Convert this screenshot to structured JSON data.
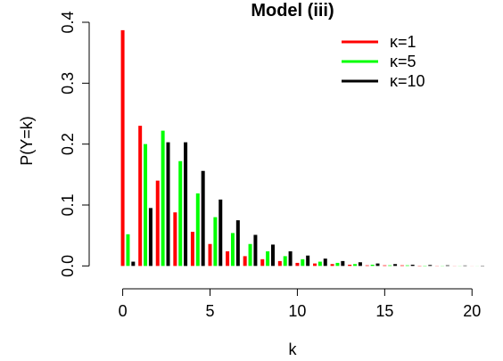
{
  "chart_data": {
    "type": "bar",
    "title": "Model (iii)",
    "xlabel": "k",
    "ylabel": "P(Y=k)",
    "xlim": [
      -1,
      20.6
    ],
    "ylim": [
      -0.02,
      0.4
    ],
    "x_ticks": [
      0,
      5,
      10,
      15,
      20
    ],
    "y_ticks": [
      0.0,
      0.1,
      0.2,
      0.3,
      0.4
    ],
    "x_tick_labels": [
      "0",
      "5",
      "10",
      "15",
      "20"
    ],
    "y_tick_labels": [
      "0.0",
      "0.1",
      "0.2",
      "0.3",
      "0.4"
    ],
    "legend_position": "top-right",
    "grid": false,
    "categories": [
      0,
      1,
      2,
      3,
      4,
      5,
      6,
      7,
      8,
      9,
      10,
      11,
      12,
      13,
      14,
      15,
      16,
      17,
      18,
      19,
      20
    ],
    "series": [
      {
        "name": "κ=1",
        "color": "#ff0000",
        "offset": 0,
        "values": [
          0.387,
          0.23,
          0.14,
          0.088,
          0.056,
          0.036,
          0.024,
          0.016,
          0.011,
          0.008,
          0.005,
          0.004,
          0.003,
          0.002,
          0.001,
          0.001,
          0.001,
          0.0005,
          0.0003,
          0.0002,
          0.0001
        ]
      },
      {
        "name": "κ=5",
        "color": "#00ff00",
        "offset": 0.3,
        "values": [
          0.052,
          0.2,
          0.222,
          0.172,
          0.119,
          0.08,
          0.054,
          0.036,
          0.024,
          0.016,
          0.011,
          0.007,
          0.005,
          0.003,
          0.002,
          0.001,
          0.001,
          0.0005,
          0.0003,
          0.0002,
          0.0001
        ]
      },
      {
        "name": "κ=10",
        "color": "#000000",
        "offset": 0.6,
        "values": [
          0.007,
          0.095,
          0.203,
          0.203,
          0.156,
          0.109,
          0.075,
          0.051,
          0.035,
          0.024,
          0.017,
          0.012,
          0.008,
          0.006,
          0.004,
          0.003,
          0.002,
          0.0015,
          0.001,
          0.0007,
          0.0005
        ]
      }
    ]
  }
}
